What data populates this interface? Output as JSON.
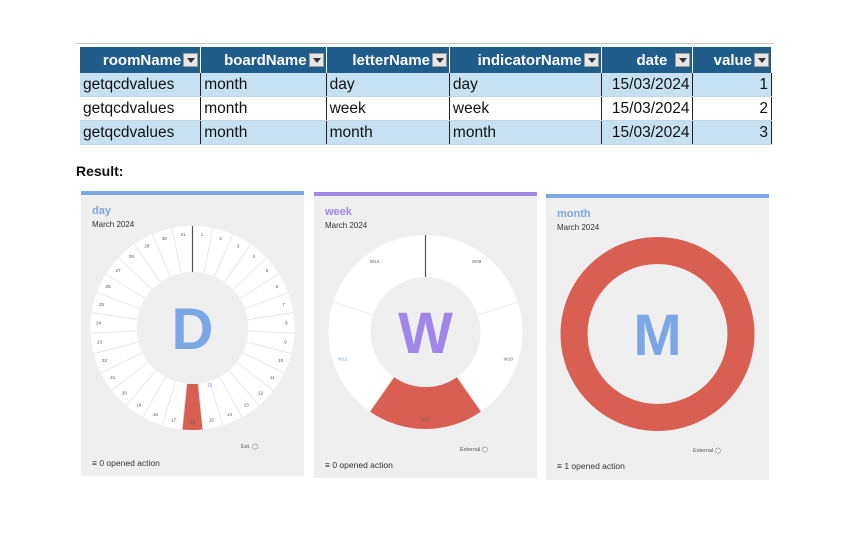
{
  "table": {
    "headers": [
      "roomName",
      "boardName",
      "letterName",
      "indicatorName",
      "date",
      "value"
    ],
    "rows": [
      [
        "getqcdvalues",
        "month",
        "day",
        "day",
        "15/03/2024",
        "1"
      ],
      [
        "getqcdvalues",
        "month",
        "week",
        "week",
        "15/03/2024",
        "2"
      ],
      [
        "getqcdvalues",
        "month",
        "month",
        "month",
        "15/03/2024",
        "3"
      ]
    ]
  },
  "result_label": "Result:",
  "cards": {
    "day": {
      "title": "day",
      "subtitle": "March 2024",
      "letter": "D",
      "accent": "#7ba7e6",
      "footer": "0 opened action",
      "ext": "Ext.",
      "ticks": [
        "1",
        "2",
        "3",
        "4",
        "5",
        "6",
        "7",
        "8",
        "9",
        "10",
        "11",
        "12",
        "13",
        "14",
        "15",
        "16",
        "17",
        "18",
        "19",
        "20",
        "21",
        "22",
        "23",
        "24",
        "25",
        "26",
        "27",
        "28",
        "29",
        "30",
        "31"
      ],
      "today_label": "15",
      "filled_day": 16
    },
    "week": {
      "title": "week",
      "subtitle": "March 2024",
      "letter": "W",
      "accent": "#a186ea",
      "footer": "0 opened action",
      "ext": "External",
      "labels": [
        "W09",
        "W10",
        "W11",
        "W12",
        "W13"
      ]
    },
    "month": {
      "title": "month",
      "subtitle": "March 2024",
      "letter": "M",
      "accent": "#7ba7e6",
      "footer": "1 opened action",
      "ext": "External"
    }
  },
  "colors": {
    "filled": "#d85f52",
    "header_bg": "#215d8b",
    "row_blue": "#c6e2f2"
  }
}
